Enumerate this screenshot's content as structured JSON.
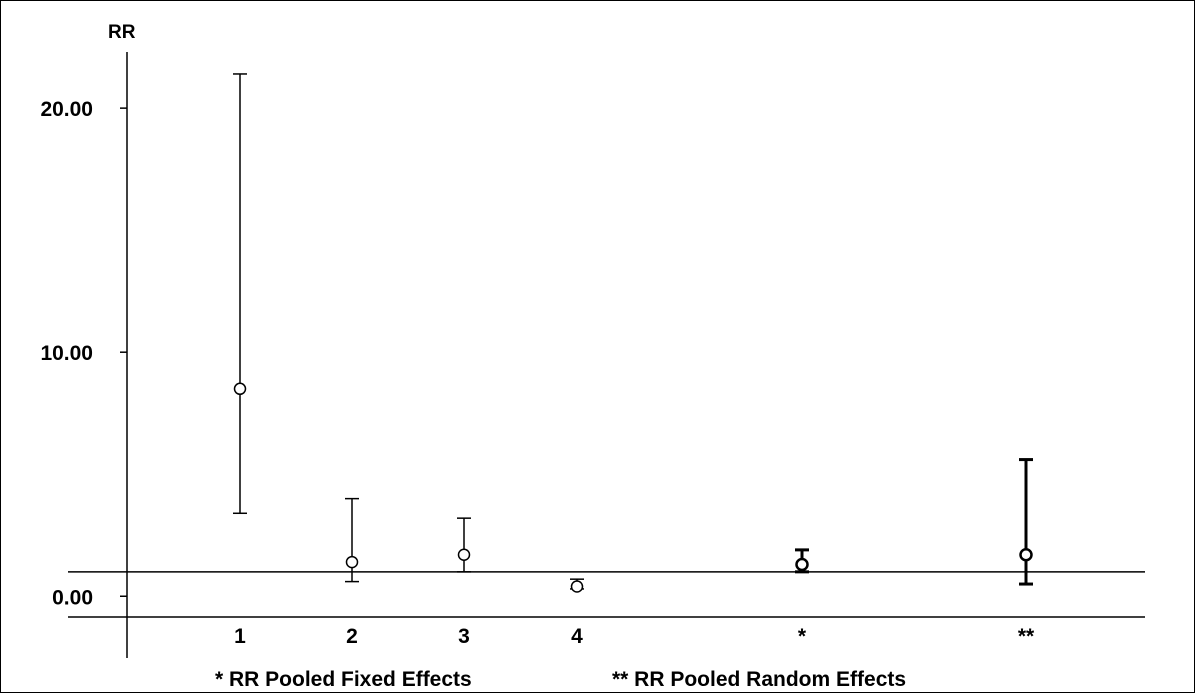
{
  "chart_data": {
    "type": "scatter",
    "title": "",
    "ylabel": "RR",
    "xlabel": "",
    "ylim": [
      -0.85,
      22.3
    ],
    "yticks": [
      "20.00",
      "10.00",
      "0.00"
    ],
    "ytick_values": [
      20,
      10,
      0
    ],
    "reference_line_y": 1.0,
    "grid": false,
    "categories": [
      "1",
      "2",
      "3",
      "4",
      "*",
      "**"
    ],
    "series": [
      {
        "points": [
          {
            "label": "1",
            "rr": 8.5,
            "lower": 3.4,
            "upper": 21.4
          },
          {
            "label": "2",
            "rr": 1.4,
            "lower": 0.6,
            "upper": 4.0
          },
          {
            "label": "3",
            "rr": 1.7,
            "lower": 1.0,
            "upper": 3.2
          },
          {
            "label": "4",
            "rr": 0.4,
            "lower": 0.3,
            "upper": 0.7
          },
          {
            "label": "*",
            "rr": 1.3,
            "lower": 1.0,
            "upper": 1.9
          },
          {
            "label": "**",
            "rr": 1.7,
            "lower": 0.5,
            "upper": 5.6
          }
        ]
      }
    ],
    "footnote": {
      "fixed": "* RR Pooled Fixed Effects",
      "random": "** RR Pooled Random Effects"
    }
  }
}
